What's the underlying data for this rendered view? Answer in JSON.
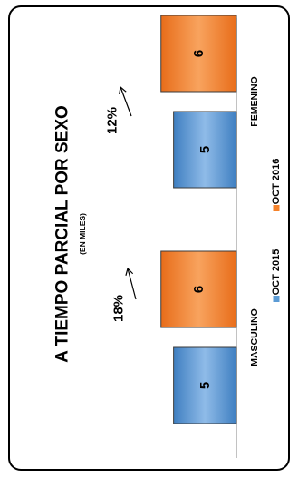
{
  "chart_data": {
    "type": "bar",
    "orientation": "rotated-90-ccw",
    "title": "A TIEMPO PARCIAL POR SEXO",
    "subtitle": "(EN MILES)",
    "categories": [
      "MASCULINO",
      "FEMENINO"
    ],
    "series": [
      {
        "name": "OCT 2015",
        "color": "#5b9bd5",
        "values": [
          5,
          5
        ]
      },
      {
        "name": "OCT 2016",
        "color": "#f5822a",
        "values": [
          6,
          6
        ]
      }
    ],
    "annotations": [
      "18%",
      "12%"
    ],
    "ylim": [
      0,
      8
    ],
    "grid": false,
    "legend": "bottom"
  }
}
